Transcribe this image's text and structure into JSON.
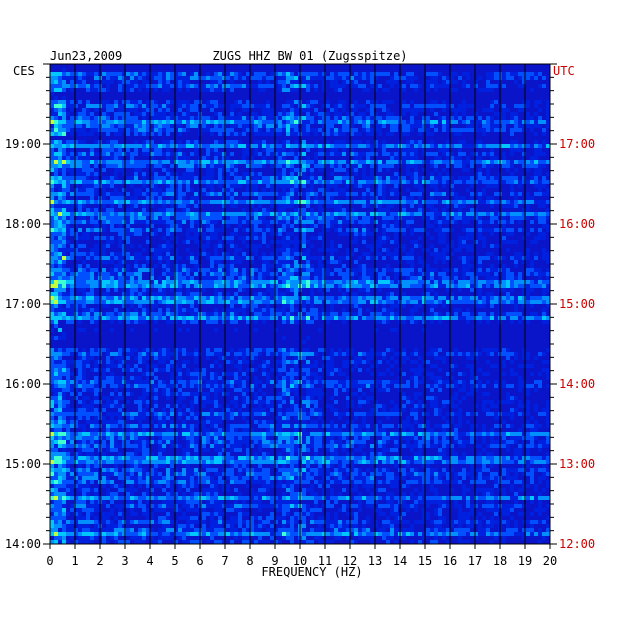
{
  "chart_data": {
    "type": "heatmap",
    "date": "Jun23,2009",
    "title": "ZUGS HHZ BW 01 (Zugsspitze)",
    "xlabel": "FREQUENCY (HZ)",
    "left_timezone": "CES",
    "right_timezone": "UTC",
    "xlim": [
      0,
      20
    ],
    "x_ticks": [
      "0",
      "1",
      "2",
      "3",
      "4",
      "5",
      "6",
      "7",
      "8",
      "9",
      "10",
      "11",
      "12",
      "13",
      "14",
      "15",
      "16",
      "17",
      "18",
      "19",
      "20"
    ],
    "left_ticks": [
      {
        "hour": 19,
        "label": "19:00"
      },
      {
        "hour": 18,
        "label": "18:00"
      },
      {
        "hour": 17,
        "label": "17:00"
      },
      {
        "hour": 16,
        "label": "16:00"
      },
      {
        "hour": 15,
        "label": "15:00"
      },
      {
        "hour": 14,
        "label": "14:00"
      }
    ],
    "right_ticks": [
      {
        "hour": 17,
        "label": "17:00"
      },
      {
        "hour": 16,
        "label": "16:00"
      },
      {
        "hour": 15,
        "label": "15:00"
      },
      {
        "hour": 14,
        "label": "14:00"
      },
      {
        "hour": 13,
        "label": "13:00"
      },
      {
        "hour": 12,
        "label": "12:00"
      }
    ],
    "time_range_hours": [
      14,
      20
    ],
    "colors": {
      "background": "#0a14c8",
      "grid": "#000000",
      "utc_label": "#cc0000",
      "text": "#000000"
    }
  }
}
